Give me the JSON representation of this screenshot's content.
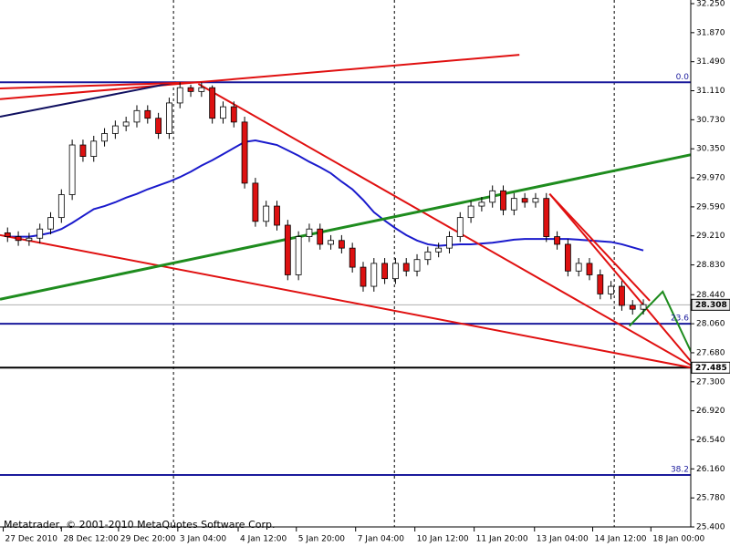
{
  "chart_data": {
    "type": "candlestick",
    "footer": "Metatrader, © 2001-2010 MetaQuotes Software Corp.",
    "xlim": [
      -0.7,
      63.4
    ],
    "ylim": [
      25.4,
      32.25
    ],
    "yticks": [
      {
        "value": 32.25,
        "label": "32.250"
      },
      {
        "value": 31.87,
        "label": "31.870"
      },
      {
        "value": 31.49,
        "label": "31.490"
      },
      {
        "value": 31.11,
        "label": "31.110"
      },
      {
        "value": 30.73,
        "label": "30.730"
      },
      {
        "value": 30.35,
        "label": "30.350"
      },
      {
        "value": 29.97,
        "label": "29.970"
      },
      {
        "value": 29.59,
        "label": "29.590"
      },
      {
        "value": 29.21,
        "label": "29.210"
      },
      {
        "value": 28.83,
        "label": "28.830"
      },
      {
        "value": 28.44,
        "label": "28.440"
      },
      {
        "value": 28.06,
        "label": "28.060"
      },
      {
        "value": 27.68,
        "label": "27.680"
      },
      {
        "value": 27.3,
        "label": "27.300"
      },
      {
        "value": 26.92,
        "label": "26.920"
      },
      {
        "value": 26.54,
        "label": "26.540"
      },
      {
        "value": 26.16,
        "label": "26.160"
      },
      {
        "value": 25.78,
        "label": "25.780"
      },
      {
        "value": 25.4,
        "label": "25.400"
      }
    ],
    "xticks": [
      {
        "value": -0.4,
        "label": "27 Dec 2010"
      },
      {
        "value": 5.0,
        "label": "28 Dec 12:00"
      },
      {
        "value": 10.3,
        "label": "29 Dec 20:00"
      },
      {
        "value": 15.8,
        "label": "3 Jan 04:00"
      },
      {
        "value": 21.4,
        "label": "4 Jan 12:00"
      },
      {
        "value": 26.8,
        "label": "5 Jan 20:00"
      },
      {
        "value": 32.3,
        "label": "7 Jan 04:00"
      },
      {
        "value": 37.8,
        "label": "10 Jan 12:00"
      },
      {
        "value": 43.3,
        "label": "11 Jan 20:00"
      },
      {
        "value": 48.9,
        "label": "13 Jan 04:00"
      },
      {
        "value": 54.3,
        "label": "14 Jan 12:00"
      },
      {
        "value": 59.7,
        "label": "18 Jan 00:00"
      }
    ],
    "separators": [
      15.4,
      35.9,
      56.3
    ],
    "bull_color": "#ffffff",
    "bear_color": "#dd1111",
    "open": [
      29.25,
      29.2,
      29.15,
      29.18,
      29.3,
      29.45,
      29.75,
      30.4,
      30.25,
      30.45,
      30.55,
      30.65,
      30.7,
      30.85,
      30.75,
      30.55,
      30.95,
      31.15,
      31.1,
      31.15,
      30.75,
      30.9,
      30.7,
      29.9,
      29.4,
      29.6,
      29.35,
      28.7,
      29.2,
      29.3,
      29.1,
      29.15,
      29.05,
      28.8,
      28.55,
      28.85,
      28.65,
      28.85,
      28.75,
      28.9,
      29.0,
      29.05,
      29.2,
      29.45,
      29.6,
      29.65,
      29.8,
      29.55,
      29.7,
      29.65,
      29.7,
      29.2,
      29.1,
      28.75,
      28.85,
      28.7,
      28.45,
      28.55,
      28.3,
      28.25
    ],
    "high": [
      29.32,
      29.27,
      29.25,
      29.37,
      29.52,
      29.82,
      30.47,
      30.47,
      30.52,
      30.62,
      30.72,
      30.77,
      30.92,
      30.92,
      30.82,
      31.02,
      31.22,
      31.19,
      31.22,
      31.18,
      30.97,
      30.97,
      30.77,
      29.97,
      29.67,
      29.67,
      29.42,
      29.27,
      29.37,
      29.37,
      29.22,
      29.22,
      29.12,
      28.87,
      28.92,
      28.92,
      28.92,
      28.92,
      28.97,
      29.07,
      29.12,
      29.27,
      29.52,
      29.67,
      29.72,
      29.87,
      29.87,
      29.77,
      29.77,
      29.77,
      29.77,
      29.27,
      29.17,
      28.92,
      28.92,
      28.77,
      28.62,
      28.62,
      28.37,
      28.38
    ],
    "low": [
      29.13,
      29.08,
      29.08,
      29.11,
      29.23,
      29.38,
      29.68,
      30.18,
      30.18,
      30.38,
      30.48,
      30.58,
      30.63,
      30.68,
      30.48,
      30.48,
      30.88,
      31.03,
      31.03,
      30.68,
      30.68,
      30.63,
      29.83,
      29.33,
      29.33,
      29.28,
      28.63,
      28.63,
      29.13,
      29.03,
      29.03,
      28.98,
      28.73,
      28.48,
      28.48,
      28.58,
      28.58,
      28.68,
      28.68,
      28.83,
      28.93,
      28.98,
      29.13,
      29.38,
      29.53,
      29.58,
      29.48,
      29.48,
      29.58,
      29.58,
      29.13,
      29.03,
      28.68,
      28.68,
      28.63,
      28.38,
      28.38,
      28.23,
      28.18,
      28.18
    ],
    "close": [
      29.2,
      29.15,
      29.18,
      29.3,
      29.45,
      29.75,
      30.4,
      30.25,
      30.45,
      30.55,
      30.65,
      30.7,
      30.85,
      30.75,
      30.55,
      30.95,
      31.15,
      31.1,
      31.15,
      30.75,
      30.9,
      30.7,
      29.9,
      29.4,
      29.6,
      29.35,
      28.7,
      29.2,
      29.3,
      29.1,
      29.15,
      29.05,
      28.8,
      28.55,
      28.85,
      28.65,
      28.85,
      28.75,
      28.9,
      29.0,
      29.05,
      29.2,
      29.45,
      29.6,
      29.65,
      29.8,
      29.55,
      29.7,
      29.65,
      29.7,
      29.2,
      29.1,
      28.75,
      28.85,
      28.7,
      28.45,
      28.55,
      28.3,
      28.25,
      28.31
    ],
    "series": [
      {
        "color": "#1a1acc",
        "values": [
          29.2,
          29.2,
          29.2,
          29.22,
          29.25,
          29.3,
          29.38,
          29.47,
          29.56,
          29.6,
          29.65,
          29.71,
          29.76,
          29.82,
          29.87,
          29.92,
          29.98,
          30.05,
          30.13,
          30.2,
          30.28,
          30.36,
          30.44,
          30.46,
          30.43,
          30.4,
          30.33,
          30.26,
          30.18,
          30.11,
          30.03,
          29.92,
          29.82,
          29.68,
          29.52,
          29.41,
          29.31,
          29.22,
          29.15,
          29.1,
          29.08,
          29.09,
          29.1,
          29.1,
          29.11,
          29.12,
          29.14,
          29.16,
          29.17,
          29.17,
          29.17,
          29.17,
          29.17,
          29.16,
          29.15,
          29.14,
          29.13,
          29.1,
          29.06,
          29.02
        ]
      }
    ],
    "trendlines": [
      {
        "color": "#e01010",
        "width": 2,
        "x": [
          -0.7,
          47.5
        ],
        "y": [
          31.0,
          31.58
        ]
      },
      {
        "color": "#101060",
        "width": 2,
        "x": [
          -0.7,
          15.6
        ],
        "y": [
          30.77,
          31.22
        ]
      },
      {
        "color": "#e01010",
        "width": 2,
        "x": [
          -0.7,
          17.7
        ],
        "y": [
          31.14,
          31.22
        ]
      },
      {
        "color": "#e01010",
        "width": 2,
        "x": [
          17.7,
          64.0
        ],
        "y": [
          31.2,
          27.47
        ]
      },
      {
        "color": "#e01010",
        "width": 2,
        "x": [
          -0.7,
          64.0
        ],
        "y": [
          29.22,
          27.47
        ]
      },
      {
        "color": "#1e8c1e",
        "width": 3,
        "x": [
          -0.7,
          64.0
        ],
        "y": [
          28.38,
          30.29
        ]
      },
      {
        "color": "#e01010",
        "width": 2,
        "x": [
          50.3,
          64.0
        ],
        "y": [
          29.76,
          27.47
        ]
      },
      {
        "color": "#e01010",
        "width": 2,
        "x": [
          50.3,
          59.6
        ],
        "y": [
          29.76,
          28.36
        ]
      },
      {
        "color": "#1e8c1e",
        "width": 2,
        "x": [
          57.7,
          60.8,
          64.0
        ],
        "y": [
          28.03,
          28.48,
          27.52
        ]
      }
    ],
    "levels": [
      {
        "value": 31.22,
        "label": "0.0",
        "color": "#1a1a9c"
      },
      {
        "value": 28.06,
        "label": "23.6",
        "color": "#1a1a9c"
      },
      {
        "value": 26.08,
        "label": "38.2",
        "color": "#1a1a9c"
      }
    ],
    "price_lines": [
      {
        "value": 27.485,
        "color": "#000000"
      },
      {
        "value": 28.308,
        "color": "#b0b0b0"
      }
    ]
  }
}
